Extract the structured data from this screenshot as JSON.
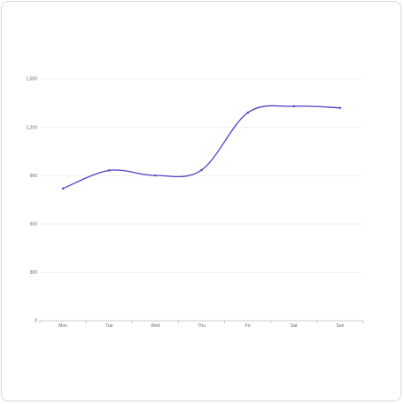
{
  "chart_data": {
    "type": "line",
    "categories": [
      "Mon",
      "Tue",
      "Wed",
      "Thu",
      "Fri",
      "Sat",
      "Sun"
    ],
    "series": [
      {
        "values": [
          820,
          932,
          901,
          934,
          1290,
          1330,
          1320
        ]
      }
    ],
    "y_ticks": [
      "0",
      "300",
      "600",
      "900",
      "1,200",
      "1,500"
    ],
    "ylim": [
      0,
      1500
    ],
    "smooth": true,
    "grid": true,
    "colors": {
      "line": "#5b3cc4",
      "marker": "#5b3cc4",
      "grid": "#eeeeee",
      "axis": "#bdbdbd"
    }
  }
}
